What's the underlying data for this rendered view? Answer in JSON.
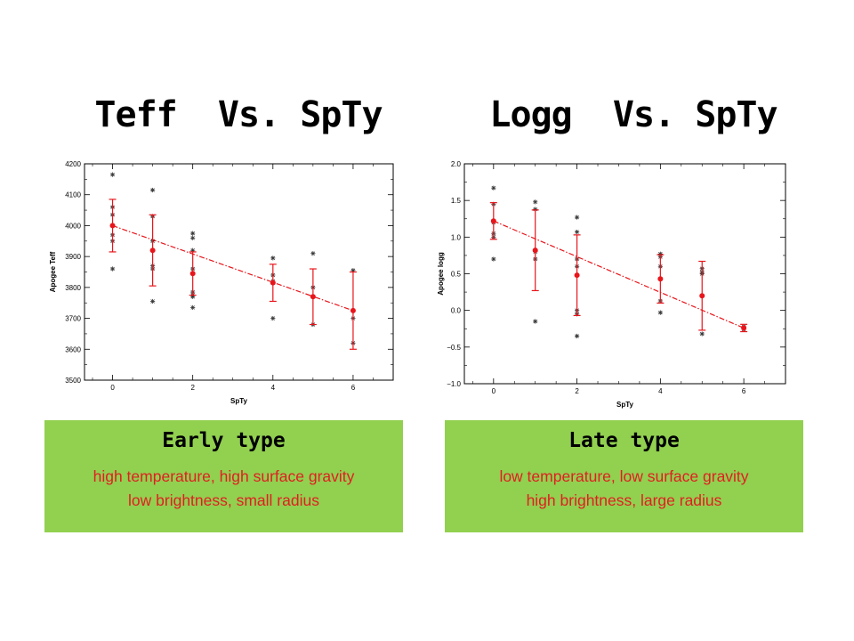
{
  "titles": {
    "left": "Teff  Vs. SpTy",
    "right": "Logg  Vs. SpTy"
  },
  "boxes": {
    "left": {
      "heading": "Early type",
      "line1": "high temperature, high surface gravity",
      "line2": "low brightness, small radius"
    },
    "right": {
      "heading": "Late type",
      "line1": "low temperature, low surface gravity",
      "line2": "high brightness, large radius"
    }
  },
  "colors": {
    "box_bg": "#92d050",
    "box_text": "#e02020",
    "mean_marker": "#e8151b",
    "scatter_marker": "#333333"
  },
  "chart_data": [
    {
      "type": "scatter",
      "title": "",
      "xlabel": "SpTy",
      "ylabel": "Apogee Teff",
      "xlim": [
        -0.7,
        7.0
      ],
      "ylim": [
        3500,
        4200
      ],
      "xticks": [
        0,
        2,
        4,
        6
      ],
      "yticks": [
        3500,
        3600,
        3700,
        3800,
        3900,
        4000,
        4100,
        4200
      ],
      "ytick_labels": [
        "3500",
        "3600",
        "3700",
        "3800",
        "3900",
        "4000",
        "4100",
        "4200"
      ],
      "xtick_labels": [
        "0",
        "2",
        "4",
        "6"
      ],
      "grid": false,
      "scatter": {
        "x": [
          0,
          0,
          0,
          0,
          0,
          0,
          0,
          1,
          1,
          1,
          1,
          1,
          1,
          2,
          2,
          2,
          2,
          2,
          2,
          2,
          2,
          4,
          4,
          4,
          4,
          5,
          5,
          5,
          6,
          6,
          6
        ],
        "y": [
          4165,
          4060,
          4035,
          4000,
          3970,
          3950,
          3860,
          4115,
          4030,
          3950,
          3870,
          3860,
          3755,
          3975,
          3960,
          3920,
          3860,
          3785,
          3775,
          3770,
          3735,
          3895,
          3840,
          3820,
          3700,
          3910,
          3800,
          3680,
          3855,
          3700,
          3620
        ]
      },
      "means": {
        "x": [
          0,
          1,
          2,
          4,
          5,
          6
        ],
        "y": [
          4000,
          3920,
          3845,
          3815,
          3770,
          3725
        ],
        "err": [
          85,
          115,
          70,
          60,
          90,
          125
        ]
      },
      "fit": {
        "x": [
          0,
          6
        ],
        "y": [
          4000,
          3725
        ]
      }
    },
    {
      "type": "scatter",
      "title": "",
      "xlabel": "SpTy",
      "ylabel": "Apogee logg",
      "xlim": [
        -0.7,
        7.0
      ],
      "ylim": [
        -1.0,
        2.0
      ],
      "xticks": [
        0,
        2,
        4,
        6
      ],
      "yticks": [
        -1.0,
        -0.5,
        0.0,
        0.5,
        1.0,
        1.5,
        2.0
      ],
      "ytick_labels": [
        "−1.0",
        "−0.5",
        "0.0",
        "0.5",
        "1.0",
        "1.5",
        "2.0"
      ],
      "xtick_labels": [
        "0",
        "2",
        "4",
        "6"
      ],
      "grid": false,
      "scatter": {
        "x": [
          0,
          0,
          0,
          0,
          0,
          0,
          1,
          1,
          1,
          1,
          1,
          2,
          2,
          2,
          2,
          2,
          2,
          2,
          4,
          4,
          4,
          4,
          4,
          5,
          5,
          5,
          5,
          6,
          6
        ],
        "y": [
          1.67,
          1.45,
          1.2,
          1.05,
          1.0,
          0.7,
          1.48,
          1.38,
          0.8,
          0.7,
          -0.15,
          1.27,
          1.07,
          0.7,
          0.6,
          0.0,
          -0.05,
          -0.35,
          0.77,
          0.73,
          0.6,
          0.13,
          -0.03,
          0.57,
          0.52,
          0.5,
          -0.32,
          -0.22,
          -0.26
        ]
      },
      "means": {
        "x": [
          0,
          1,
          2,
          4,
          5,
          6
        ],
        "y": [
          1.22,
          0.82,
          0.48,
          0.43,
          0.2,
          -0.24
        ],
        "err": [
          0.25,
          0.55,
          0.55,
          0.33,
          0.47,
          0.05
        ]
      },
      "fit": {
        "x": [
          0,
          6
        ],
        "y": [
          1.22,
          -0.24
        ]
      }
    }
  ]
}
